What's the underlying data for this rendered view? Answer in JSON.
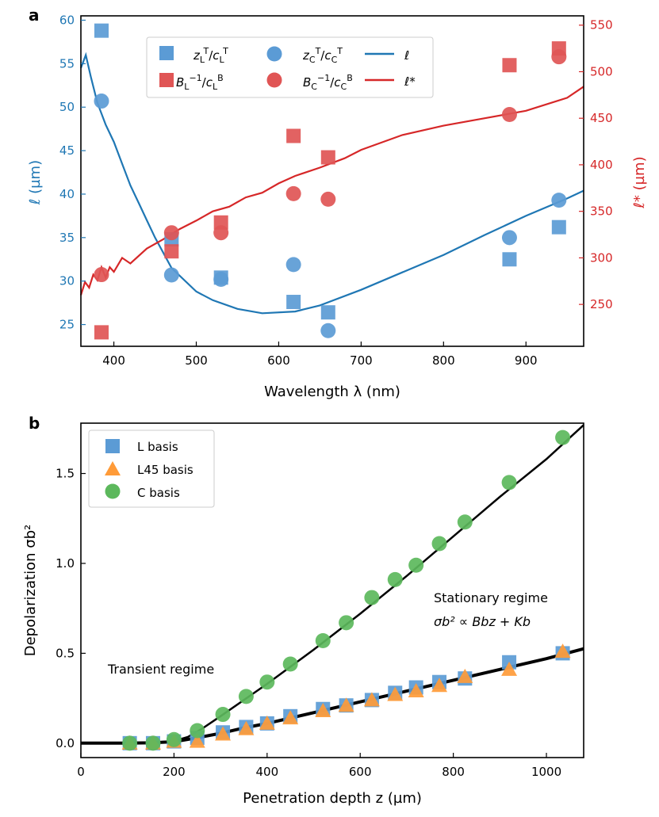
{
  "chart_data": [
    {
      "id": "a",
      "panel_label": "a",
      "type": "scatter+line",
      "xlabel": "Wavelength λ (nm)",
      "ylabel_left": "ℓ (µm)",
      "ylabel_right": "ℓ* (µm)",
      "xlim": [
        360,
        970
      ],
      "ylim_left": [
        22.5,
        60.5
      ],
      "ylim_right": [
        205,
        560
      ],
      "x_ticks": [
        400,
        500,
        600,
        700,
        800,
        900
      ],
      "y_ticks_left": [
        25,
        30,
        35,
        40,
        45,
        50,
        55,
        60
      ],
      "y_ticks_right": [
        250,
        300,
        350,
        400,
        450,
        500,
        550
      ],
      "colors": {
        "left": "#1f77b4",
        "right": "#d62728",
        "blue_marker": "#5b9bd5",
        "red_marker": "#e05555"
      },
      "legend": [
        {
          "label": "zLT/cLT",
          "marker": "square",
          "color": "blue"
        },
        {
          "label": "zCT/cCT",
          "marker": "circle",
          "color": "blue"
        },
        {
          "label": "ℓ",
          "marker": "line",
          "color": "blue"
        },
        {
          "label": "BL⁻¹/cLB",
          "marker": "square",
          "color": "red"
        },
        {
          "label": "BC⁻¹/cCB",
          "marker": "circle",
          "color": "red"
        },
        {
          "label": "ℓ*",
          "marker": "line",
          "color": "red"
        }
      ],
      "series": [
        {
          "name": "zL_T/cL_T",
          "axis": "left",
          "marker": "square",
          "x": [
            385,
            470,
            530,
            618,
            660,
            880,
            940
          ],
          "y": [
            58.8,
            34.8,
            30.4,
            27.6,
            26.4,
            32.5,
            36.2
          ]
        },
        {
          "name": "zC_T/cC_T",
          "axis": "left",
          "marker": "circle",
          "x": [
            385,
            470,
            530,
            618,
            660,
            880,
            940
          ],
          "y": [
            50.7,
            30.7,
            30.2,
            31.9,
            24.3,
            35.0,
            39.3
          ]
        },
        {
          "name": "BL^-1/cL_B",
          "axis": "right",
          "marker": "square",
          "x": [
            385,
            470,
            530,
            618,
            660,
            880,
            940
          ],
          "y": [
            220,
            307,
            338,
            431,
            408,
            507,
            525
          ]
        },
        {
          "name": "BC^-1/cC_B",
          "axis": "right",
          "marker": "circle",
          "x": [
            385,
            470,
            530,
            618,
            660,
            880,
            940
          ],
          "y": [
            282,
            327,
            327,
            369,
            363,
            454,
            516
          ]
        },
        {
          "name": "ell",
          "axis": "left",
          "marker": "line",
          "x": [
            360,
            366,
            372,
            380,
            390,
            400,
            410,
            420,
            430,
            440,
            450,
            470,
            500,
            520,
            550,
            580,
            620,
            650,
            700,
            750,
            800,
            850,
            900,
            950,
            970
          ],
          "y": [
            54.5,
            56.0,
            53.5,
            50.5,
            48.0,
            46.0,
            43.5,
            41.0,
            39.0,
            37.0,
            35.0,
            31.5,
            28.8,
            27.8,
            26.8,
            26.3,
            26.5,
            27.2,
            29.0,
            31.0,
            33.0,
            35.3,
            37.5,
            39.5,
            40.4
          ]
        },
        {
          "name": "ell_star",
          "axis": "right",
          "marker": "line",
          "x": [
            360,
            365,
            370,
            375,
            380,
            385,
            390,
            395,
            400,
            410,
            420,
            440,
            460,
            480,
            500,
            520,
            540,
            560,
            580,
            600,
            620,
            650,
            680,
            700,
            750,
            800,
            850,
            900,
            950,
            970
          ],
          "y": [
            260,
            274,
            268,
            282,
            276,
            290,
            279,
            290,
            285,
            300,
            294,
            310,
            320,
            331,
            340,
            350,
            355,
            365,
            370,
            380,
            388,
            397,
            407,
            416,
            432,
            442,
            450,
            458,
            472,
            484
          ]
        }
      ]
    },
    {
      "id": "b",
      "panel_label": "b",
      "type": "scatter+line",
      "xlabel": "Penetration depth z (µm)",
      "ylabel": "Depolarization σb²",
      "xlim": [
        0,
        1080
      ],
      "ylim": [
        -0.08,
        1.78
      ],
      "x_ticks": [
        0,
        200,
        400,
        600,
        800,
        1000
      ],
      "y_ticks": [
        0.0,
        0.5,
        1.0,
        1.5
      ],
      "y_tick_labels": [
        "0.0",
        "0.5",
        "1.0",
        "1.5"
      ],
      "colors": {
        "L": "#5b9bd5",
        "L45": "#ff9b38",
        "C": "#5cb85c"
      },
      "legend": [
        {
          "label": "L basis",
          "marker": "square"
        },
        {
          "label": "L45 basis",
          "marker": "triangle"
        },
        {
          "label": "C basis",
          "marker": "circle"
        }
      ],
      "annotations": {
        "transient": "Transient regime",
        "stationary_title": "Stationary regime",
        "stationary_formula": "σb² ∝ Bbz + Kb"
      },
      "series": [
        {
          "name": "L basis",
          "marker": "square",
          "x": [
            105,
            155,
            200,
            250,
            305,
            355,
            400,
            450,
            520,
            570,
            625,
            675,
            720,
            770,
            825,
            920,
            1035
          ],
          "y": [
            0.0,
            0.0,
            0.01,
            0.03,
            0.06,
            0.09,
            0.11,
            0.15,
            0.19,
            0.21,
            0.24,
            0.28,
            0.31,
            0.34,
            0.36,
            0.45,
            0.5
          ]
        },
        {
          "name": "L45 basis",
          "marker": "triangle",
          "x": [
            105,
            155,
            200,
            250,
            305,
            355,
            400,
            450,
            520,
            570,
            625,
            675,
            720,
            770,
            825,
            920,
            1035
          ],
          "y": [
            0.0,
            0.0,
            0.01,
            0.01,
            0.05,
            0.08,
            0.11,
            0.14,
            0.18,
            0.21,
            0.24,
            0.27,
            0.29,
            0.32,
            0.37,
            0.41,
            0.51
          ]
        },
        {
          "name": "C basis",
          "marker": "circle",
          "x": [
            105,
            155,
            200,
            250,
            305,
            355,
            400,
            450,
            520,
            570,
            625,
            675,
            720,
            770,
            825,
            920,
            1035
          ],
          "y": [
            0.0,
            0.0,
            0.02,
            0.07,
            0.16,
            0.26,
            0.34,
            0.44,
            0.57,
            0.67,
            0.81,
            0.91,
            0.99,
            1.11,
            1.23,
            1.45,
            1.7
          ]
        },
        {
          "name": "fit_C",
          "marker": "line",
          "x": [
            0,
            100,
            150,
            200,
            230,
            260,
            300,
            350,
            400,
            500,
            600,
            700,
            800,
            900,
            1000,
            1080
          ],
          "y": [
            0.0,
            0.0,
            0.003,
            0.012,
            0.035,
            0.08,
            0.15,
            0.24,
            0.33,
            0.52,
            0.72,
            0.93,
            1.15,
            1.37,
            1.58,
            1.77
          ]
        },
        {
          "name": "fit_L",
          "marker": "line",
          "x": [
            0,
            100,
            150,
            200,
            250,
            300,
            350,
            400,
            500,
            600,
            700,
            800,
            900,
            1000,
            1080
          ],
          "y": [
            0.0,
            0.0,
            0.002,
            0.008,
            0.03,
            0.055,
            0.085,
            0.11,
            0.17,
            0.23,
            0.29,
            0.35,
            0.41,
            0.47,
            0.525
          ]
        }
      ]
    }
  ]
}
